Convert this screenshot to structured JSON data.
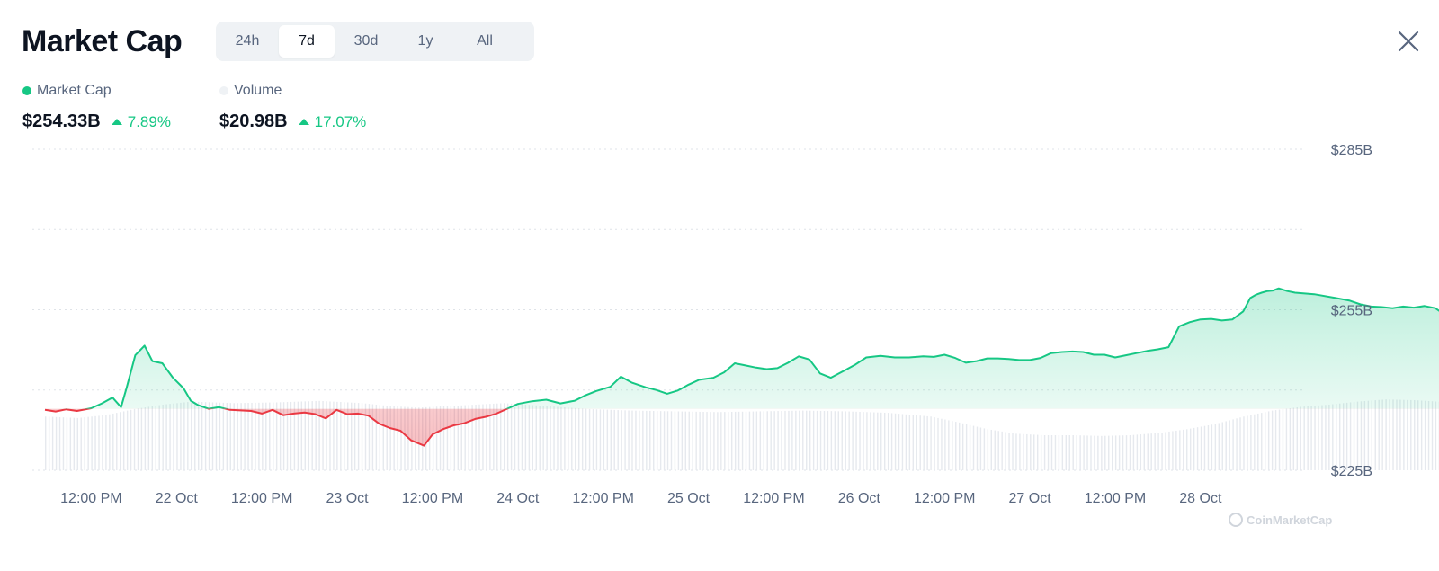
{
  "header": {
    "title": "Market Cap",
    "ranges": [
      "24h",
      "7d",
      "30d",
      "1y",
      "All"
    ],
    "active_range": "7d"
  },
  "legend": [
    {
      "label": "Market Cap",
      "color": "#16c784",
      "value": "$254.33B",
      "change": "7.89%"
    },
    {
      "label": "Volume",
      "color": "#eff2f5",
      "value": "$20.98B",
      "change": "17.07%"
    }
  ],
  "watermark": "CoinMarketCap",
  "colors": {
    "up": "#16c784",
    "down": "#ea3943",
    "grid": "#dfe3e8",
    "volume": "#e6e9ee"
  },
  "chart_data": {
    "type": "area",
    "y_ticks": [
      "$285B",
      "$255B",
      "$225B"
    ],
    "ylim": [
      225,
      285
    ],
    "y_unit": "billion USD",
    "baseline": 236.5,
    "x_ticks": [
      "12:00 PM",
      "22 Oct",
      "12:00 PM",
      "23 Oct",
      "12:00 PM",
      "24 Oct",
      "12:00 PM",
      "25 Oct",
      "12:00 PM",
      "26 Oct",
      "12:00 PM",
      "27 Oct",
      "12:00 PM",
      "28 Oct"
    ],
    "x_range_hours": [
      -18.5,
      157.3
    ],
    "series": [
      {
        "name": "Market Cap",
        "points": [
          [
            -18.5,
            236.3
          ],
          [
            -17,
            236.0
          ],
          [
            -15.5,
            236.4
          ],
          [
            -14,
            236.1
          ],
          [
            -12,
            236.6
          ],
          [
            -10.5,
            237.5
          ],
          [
            -9,
            238.6
          ],
          [
            -7.8,
            236.8
          ],
          [
            -7,
            240.5
          ],
          [
            -5.8,
            246.5
          ],
          [
            -4.5,
            248.3
          ],
          [
            -3.4,
            245.4
          ],
          [
            -2,
            245.0
          ],
          [
            -0.5,
            242.3
          ],
          [
            1,
            240.3
          ],
          [
            2,
            238.0
          ],
          [
            3,
            237.2
          ],
          [
            4.5,
            236.5
          ],
          [
            6,
            236.8
          ],
          [
            7.5,
            236.3
          ],
          [
            9,
            236.2
          ],
          [
            10.5,
            236.1
          ],
          [
            12,
            235.6
          ],
          [
            13.5,
            236.3
          ],
          [
            15,
            235.3
          ],
          [
            16.5,
            235.6
          ],
          [
            18,
            235.8
          ],
          [
            19.5,
            235.5
          ],
          [
            21,
            234.7
          ],
          [
            22.5,
            236.3
          ],
          [
            24,
            235.5
          ],
          [
            25.5,
            235.6
          ],
          [
            27,
            235.2
          ],
          [
            28.5,
            233.7
          ],
          [
            30,
            232.9
          ],
          [
            31.5,
            232.4
          ],
          [
            33,
            230.6
          ],
          [
            34.8,
            229.6
          ],
          [
            36,
            231.7
          ],
          [
            37.5,
            232.7
          ],
          [
            39,
            233.4
          ],
          [
            40.5,
            233.8
          ],
          [
            42,
            234.6
          ],
          [
            43.5,
            235.0
          ],
          [
            45,
            235.6
          ],
          [
            46.5,
            236.5
          ],
          [
            48,
            237.4
          ],
          [
            50,
            237.9
          ],
          [
            52,
            238.2
          ],
          [
            54,
            237.5
          ],
          [
            56,
            238.0
          ],
          [
            57.5,
            239.0
          ],
          [
            59,
            239.8
          ],
          [
            61,
            240.6
          ],
          [
            62.5,
            242.5
          ],
          [
            64,
            241.4
          ],
          [
            66,
            240.5
          ],
          [
            67.5,
            240.0
          ],
          [
            69,
            239.3
          ],
          [
            70.5,
            239.9
          ],
          [
            72,
            241.0
          ],
          [
            73.5,
            241.9
          ],
          [
            75.5,
            242.3
          ],
          [
            77,
            243.3
          ],
          [
            78.5,
            245.0
          ],
          [
            80,
            244.6
          ],
          [
            81.5,
            244.2
          ],
          [
            83,
            243.9
          ],
          [
            84.5,
            244.1
          ],
          [
            86,
            245.1
          ],
          [
            87.5,
            246.3
          ],
          [
            89,
            245.7
          ],
          [
            90.5,
            243.1
          ],
          [
            92,
            242.3
          ],
          [
            94,
            243.7
          ],
          [
            95.5,
            244.8
          ],
          [
            97,
            246.1
          ],
          [
            99,
            246.4
          ],
          [
            101,
            246.1
          ],
          [
            103,
            246.1
          ],
          [
            105,
            246.3
          ],
          [
            106.5,
            246.2
          ],
          [
            108,
            246.6
          ],
          [
            109.5,
            246.0
          ],
          [
            111,
            245.1
          ],
          [
            112.5,
            245.4
          ],
          [
            114,
            245.9
          ],
          [
            115.5,
            245.9
          ],
          [
            117,
            245.8
          ],
          [
            118.5,
            245.6
          ],
          [
            120,
            245.6
          ],
          [
            121.5,
            246.0
          ],
          [
            123,
            246.9
          ],
          [
            124.5,
            247.1
          ],
          [
            126,
            247.2
          ],
          [
            127.5,
            247.1
          ],
          [
            129,
            246.6
          ],
          [
            130.5,
            246.6
          ],
          [
            132,
            246.1
          ],
          [
            133.5,
            246.5
          ],
          [
            135,
            246.9
          ],
          [
            136.5,
            247.3
          ],
          [
            138,
            247.6
          ],
          [
            139.5,
            248.0
          ],
          [
            141,
            251.9
          ],
          [
            142.5,
            252.7
          ],
          [
            144,
            253.2
          ],
          [
            145.5,
            253.3
          ],
          [
            147,
            253.0
          ],
          [
            148.5,
            253.2
          ],
          [
            150,
            254.7
          ],
          [
            151,
            257.2
          ],
          [
            151.8,
            257.8
          ],
          [
            152.6,
            258.2
          ],
          [
            153.4,
            258.5
          ],
          [
            154.2,
            258.6
          ],
          [
            155,
            259.0
          ],
          [
            155.5,
            258.8
          ],
          [
            156.2,
            258.5
          ],
          [
            157.3,
            258.2
          ],
          [
            160,
            257.9
          ],
          [
            163,
            257.2
          ],
          [
            165,
            256.7
          ],
          [
            166.5,
            256.0
          ],
          [
            168,
            255.6
          ],
          [
            169.5,
            255.5
          ],
          [
            171,
            255.3
          ],
          [
            172.5,
            255.6
          ],
          [
            174,
            255.4
          ],
          [
            175.5,
            255.7
          ],
          [
            177,
            255.3
          ],
          [
            178,
            254.4
          ],
          [
            179,
            254.3
          ]
        ]
      },
      {
        "name": "Volume",
        "relative_levels": [
          [
            -18.5,
            0.72
          ],
          [
            -14,
            0.7
          ],
          [
            -10,
            0.74
          ],
          [
            -6,
            0.82
          ],
          [
            -2,
            0.88
          ],
          [
            2,
            0.92
          ],
          [
            8,
            0.9
          ],
          [
            14,
            0.91
          ],
          [
            20,
            0.93
          ],
          [
            26,
            0.9
          ],
          [
            30,
            0.86
          ],
          [
            34,
            0.84
          ],
          [
            38,
            0.86
          ],
          [
            42,
            0.88
          ],
          [
            46,
            0.9
          ],
          [
            52,
            0.86
          ],
          [
            58,
            0.82
          ],
          [
            64,
            0.8
          ],
          [
            70,
            0.79
          ],
          [
            76,
            0.78
          ],
          [
            82,
            0.79
          ],
          [
            88,
            0.8
          ],
          [
            94,
            0.79
          ],
          [
            100,
            0.77
          ],
          [
            106,
            0.72
          ],
          [
            110,
            0.64
          ],
          [
            114,
            0.55
          ],
          [
            118,
            0.49
          ],
          [
            122,
            0.47
          ],
          [
            126,
            0.47
          ],
          [
            130,
            0.46
          ],
          [
            134,
            0.47
          ],
          [
            138,
            0.5
          ],
          [
            142,
            0.55
          ],
          [
            146,
            0.62
          ],
          [
            150,
            0.72
          ],
          [
            154,
            0.8
          ],
          [
            158,
            0.85
          ],
          [
            162,
            0.88
          ],
          [
            166,
            0.92
          ],
          [
            170,
            0.95
          ],
          [
            174,
            0.94
          ],
          [
            179,
            0.91
          ]
        ]
      }
    ]
  }
}
